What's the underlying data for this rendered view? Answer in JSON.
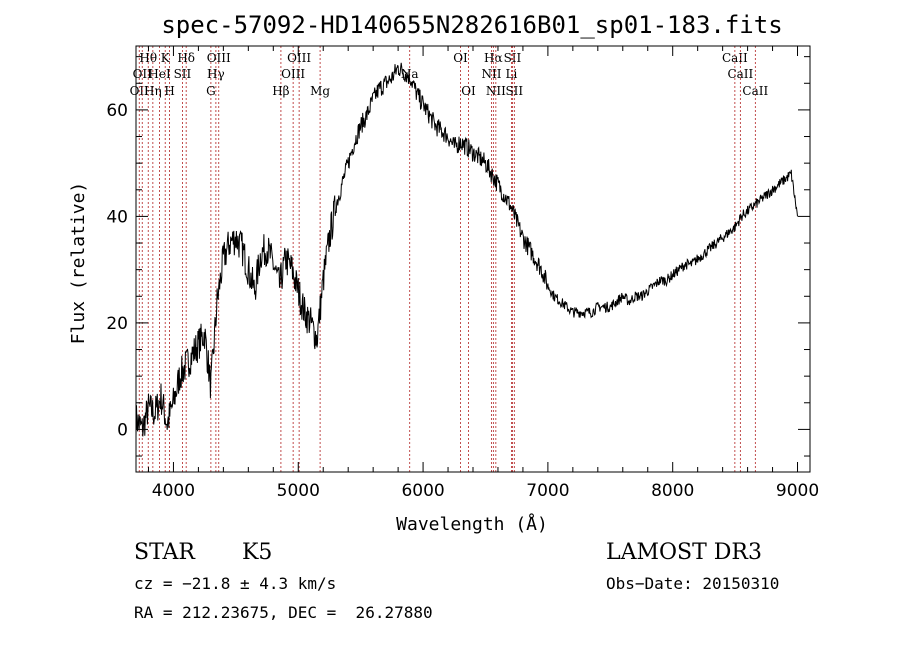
{
  "chart_data": {
    "type": "line",
    "title": "spec-57092-HD140655N282616B01_sp01-183.fits",
    "xlabel": "Wavelength (Å)",
    "ylabel": "Flux (relative)",
    "xlim": [
      3700,
      9100
    ],
    "ylim": [
      -8,
      72
    ],
    "xticks": [
      4000,
      5000,
      6000,
      7000,
      8000,
      9000
    ],
    "yticks": [
      0,
      20,
      40,
      60
    ],
    "grid": false,
    "series": [
      {
        "x": [
          3700,
          3750,
          3800,
          3850,
          3900,
          3950,
          4000,
          4050,
          4100,
          4150,
          4200,
          4250,
          4300,
          4350,
          4400,
          4450,
          4500,
          4550,
          4600,
          4650,
          4700,
          4750,
          4800,
          4850,
          4900,
          4950,
          5000,
          5050,
          5100,
          5150,
          5200,
          5250,
          5300,
          5350,
          5400,
          5450,
          5500,
          5550,
          5600,
          5650,
          5700,
          5750,
          5800,
          5850,
          5900,
          5950,
          6000,
          6050,
          6100,
          6150,
          6200,
          6250,
          6300,
          6350,
          6400,
          6450,
          6500,
          6550,
          6600,
          6650,
          6700,
          6750,
          6800,
          6850,
          6900,
          6950,
          7000,
          7050,
          7100,
          7150,
          7200,
          7250,
          7300,
          7350,
          7400,
          7450,
          7500,
          7550,
          7600,
          7650,
          7700,
          7750,
          7800,
          7850,
          7900,
          7950,
          8000,
          8050,
          8100,
          8150,
          8200,
          8250,
          8300,
          8350,
          8400,
          8450,
          8500,
          8550,
          8600,
          8650,
          8700,
          8750,
          8800,
          8850,
          8900,
          8950,
          9000
        ],
        "y": [
          2,
          0,
          4,
          3,
          6,
          1,
          5,
          10,
          12,
          14,
          16,
          18,
          8,
          24,
          32,
          35,
          36,
          34,
          30,
          26,
          33,
          34,
          31,
          27,
          32,
          30,
          26,
          22,
          20,
          17,
          28,
          36,
          42,
          46,
          50,
          54,
          57,
          59,
          62,
          64,
          65,
          66,
          68,
          67,
          66,
          63,
          61,
          59,
          57,
          56,
          55,
          53,
          54,
          53,
          52,
          51,
          50,
          48,
          46,
          44,
          42,
          39,
          36,
          34,
          32,
          30,
          27,
          25,
          24,
          23,
          22,
          22,
          22,
          22,
          23,
          23,
          23,
          24,
          25,
          24,
          25,
          25,
          26,
          27,
          28,
          28,
          29,
          30,
          31,
          31,
          32,
          33,
          34,
          35,
          36,
          37,
          38,
          40,
          41,
          42,
          43,
          44,
          45,
          46,
          47,
          48,
          40
        ]
      }
    ],
    "line_markers": [
      {
        "wl": 3726,
        "row": 2,
        "label": "OII"
      },
      {
        "wl": 3750,
        "row": 1,
        "label": "OII"
      },
      {
        "wl": 3798,
        "row": 0,
        "label": "Hθ"
      },
      {
        "wl": 3835,
        "row": 2,
        "label": "Hη"
      },
      {
        "wl": 3889,
        "row": 1,
        "label": "HeI"
      },
      {
        "wl": 3934,
        "row": 0,
        "label": "K"
      },
      {
        "wl": 3969,
        "row": 2,
        "label": "H"
      },
      {
        "wl": 4072,
        "row": 1,
        "label": "SII"
      },
      {
        "wl": 4102,
        "row": 0,
        "label": "Hδ"
      },
      {
        "wl": 4300,
        "row": 2,
        "label": "G"
      },
      {
        "wl": 4340,
        "row": 1,
        "label": "Hγ"
      },
      {
        "wl": 4363,
        "row": 0,
        "label": "OIII"
      },
      {
        "wl": 4861,
        "row": 2,
        "label": "Hβ"
      },
      {
        "wl": 4959,
        "row": 1,
        "label": "OIII"
      },
      {
        "wl": 5007,
        "row": 0,
        "label": "OIII"
      },
      {
        "wl": 5175,
        "row": 2,
        "label": "Mg"
      },
      {
        "wl": 5893,
        "row": 1,
        "label": "Na"
      },
      {
        "wl": 6300,
        "row": 0,
        "label": "OI"
      },
      {
        "wl": 6364,
        "row": 2,
        "label": "OI"
      },
      {
        "wl": 6548,
        "row": 1,
        "label": "NII"
      },
      {
        "wl": 6563,
        "row": 0,
        "label": "Hα"
      },
      {
        "wl": 6583,
        "row": 2,
        "label": "NII"
      },
      {
        "wl": 6708,
        "row": 1,
        "label": "Li"
      },
      {
        "wl": 6716,
        "row": 0,
        "label": "SII"
      },
      {
        "wl": 6731,
        "row": 2,
        "label": "SII"
      },
      {
        "wl": 8498,
        "row": 0,
        "label": "CaII"
      },
      {
        "wl": 8542,
        "row": 1,
        "label": "CaII"
      },
      {
        "wl": 8662,
        "row": 2,
        "label": "CaII"
      }
    ]
  },
  "info": {
    "class": "STAR",
    "subclass": "K5",
    "survey": "LAMOST DR3",
    "cz": "cz = −21.8 ± 4.3 km/s",
    "obs_date": "Obs−Date: 20150310",
    "radec": "RA = 212.23675, DEC =  26.27880"
  }
}
